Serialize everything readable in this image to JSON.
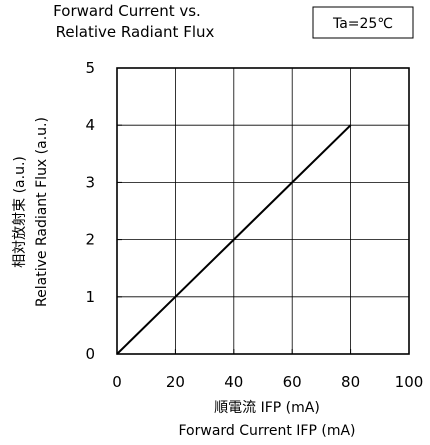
{
  "chart_data": {
    "type": "line",
    "title_lines": [
      "Forward Current vs.",
      "Relative Radiant Flux"
    ],
    "condition_box": "Ta=25℃",
    "xlabel_lines": [
      "順電流  IFP (mA)",
      "Forward Current  IFP (mA)"
    ],
    "ylabel_lines": [
      "相対放射束 (a.u.)",
      "Relative Radiant Flux (a.u.)"
    ],
    "xlim": [
      0,
      100
    ],
    "ylim": [
      0,
      5
    ],
    "x_ticks": [
      0,
      20,
      40,
      60,
      80,
      100
    ],
    "y_ticks": [
      0,
      1,
      2,
      3,
      4,
      5
    ],
    "x_tick_labels": [
      "0",
      "20",
      "40",
      "60",
      "80",
      "100"
    ],
    "y_tick_labels": [
      "0",
      "1",
      "2",
      "3",
      "4",
      "5"
    ],
    "grid": true,
    "series": [
      {
        "x": [
          0,
          20,
          40,
          60,
          80
        ],
        "y": [
          0,
          1,
          2,
          3,
          4
        ]
      }
    ],
    "line_color": "#000000",
    "grid_color": "#000000"
  }
}
